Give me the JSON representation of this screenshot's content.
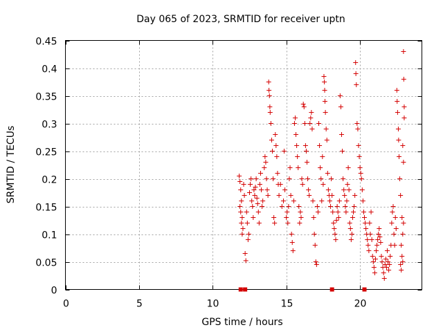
{
  "chart_data": {
    "type": "scatter",
    "title": "Day 065 of 2023, SRMTID for receiver uptn",
    "xlabel": "GPS time / hours",
    "ylabel": "SRMTID / TECUs",
    "xlim": [
      0,
      24.2
    ],
    "ylim": [
      0,
      0.45
    ],
    "xticks": [
      0,
      5,
      10,
      15,
      20
    ],
    "yticks": [
      0,
      0.05,
      0.1,
      0.15,
      0.2,
      0.25,
      0.3,
      0.35,
      0.4,
      0.45
    ],
    "xtick_labels": [
      "0",
      "5",
      "10",
      "15",
      "20"
    ],
    "ytick_labels": [
      "0",
      "0.05",
      "0.1",
      "0.15",
      "0.2",
      "0.25",
      "0.3",
      "0.35",
      "0.4",
      "0.45"
    ],
    "grid": true,
    "marker": "+",
    "color": "#d40000",
    "zero_markers_x": [
      11.9,
      12.2,
      18.1,
      20.3
    ],
    "series": [
      {
        "name": "SRMTID",
        "points": [
          [
            11.8,
            0.205
          ],
          [
            11.85,
            0.195
          ],
          [
            11.9,
            0.18
          ],
          [
            11.95,
            0.16
          ],
          [
            11.9,
            0.14
          ],
          [
            11.95,
            0.12
          ],
          [
            12.0,
            0.1
          ],
          [
            12.05,
            0.11
          ],
          [
            12.0,
            0.13
          ],
          [
            11.85,
            0.15
          ],
          [
            12.1,
            0.19
          ],
          [
            12.15,
            0.17
          ],
          [
            12.2,
            0.065
          ],
          [
            12.25,
            0.052
          ],
          [
            12.3,
            0.14
          ],
          [
            12.35,
            0.12
          ],
          [
            12.4,
            0.09
          ],
          [
            12.45,
            0.1
          ],
          [
            12.5,
            0.175
          ],
          [
            12.55,
            0.19
          ],
          [
            12.6,
            0.2
          ],
          [
            12.65,
            0.16
          ],
          [
            12.7,
            0.15
          ],
          [
            12.75,
            0.13
          ],
          [
            12.8,
            0.18
          ],
          [
            12.85,
            0.17
          ],
          [
            12.9,
            0.185
          ],
          [
            12.95,
            0.2
          ],
          [
            13.0,
            0.165
          ],
          [
            13.05,
            0.155
          ],
          [
            13.1,
            0.14
          ],
          [
            13.15,
            0.12
          ],
          [
            13.2,
            0.19
          ],
          [
            13.25,
            0.21
          ],
          [
            13.3,
            0.18
          ],
          [
            13.35,
            0.15
          ],
          [
            13.4,
            0.16
          ],
          [
            13.5,
            0.22
          ],
          [
            13.55,
            0.24
          ],
          [
            13.6,
            0.23
          ],
          [
            13.65,
            0.2
          ],
          [
            13.7,
            0.18
          ],
          [
            13.75,
            0.17
          ],
          [
            13.8,
            0.375
          ],
          [
            13.82,
            0.36
          ],
          [
            13.85,
            0.35
          ],
          [
            13.88,
            0.33
          ],
          [
            13.9,
            0.32
          ],
          [
            13.95,
            0.3
          ],
          [
            14.0,
            0.27
          ],
          [
            14.05,
            0.25
          ],
          [
            14.1,
            0.2
          ],
          [
            14.15,
            0.13
          ],
          [
            14.2,
            0.12
          ],
          [
            14.25,
            0.28
          ],
          [
            14.3,
            0.26
          ],
          [
            14.35,
            0.24
          ],
          [
            14.4,
            0.21
          ],
          [
            14.45,
            0.19
          ],
          [
            14.5,
            0.17
          ],
          [
            14.6,
            0.19
          ],
          [
            14.7,
            0.15
          ],
          [
            14.8,
            0.16
          ],
          [
            14.85,
            0.25
          ],
          [
            14.9,
            0.18
          ],
          [
            15.0,
            0.13
          ],
          [
            15.05,
            0.14
          ],
          [
            15.1,
            0.12
          ],
          [
            15.15,
            0.15
          ],
          [
            15.2,
            0.2
          ],
          [
            15.25,
            0.22
          ],
          [
            15.3,
            0.17
          ],
          [
            15.35,
            0.1
          ],
          [
            15.4,
            0.085
          ],
          [
            15.45,
            0.07
          ],
          [
            15.5,
            0.16
          ],
          [
            15.55,
            0.3
          ],
          [
            15.6,
            0.31
          ],
          [
            15.65,
            0.28
          ],
          [
            15.7,
            0.26
          ],
          [
            15.75,
            0.24
          ],
          [
            15.8,
            0.22
          ],
          [
            15.85,
            0.15
          ],
          [
            15.9,
            0.12
          ],
          [
            15.95,
            0.14
          ],
          [
            16.0,
            0.13
          ],
          [
            16.05,
            0.2
          ],
          [
            16.1,
            0.19
          ],
          [
            16.15,
            0.335
          ],
          [
            16.2,
            0.33
          ],
          [
            16.25,
            0.3
          ],
          [
            16.3,
            0.26
          ],
          [
            16.35,
            0.25
          ],
          [
            16.4,
            0.23
          ],
          [
            16.45,
            0.2
          ],
          [
            16.5,
            0.18
          ],
          [
            16.55,
            0.17
          ],
          [
            16.6,
            0.3
          ],
          [
            16.65,
            0.31
          ],
          [
            16.7,
            0.32
          ],
          [
            16.75,
            0.29
          ],
          [
            16.8,
            0.16
          ],
          [
            16.85,
            0.13
          ],
          [
            16.9,
            0.1
          ],
          [
            16.95,
            0.08
          ],
          [
            17.0,
            0.05
          ],
          [
            17.05,
            0.045
          ],
          [
            17.1,
            0.15
          ],
          [
            17.15,
            0.14
          ],
          [
            17.2,
            0.3
          ],
          [
            17.25,
            0.26
          ],
          [
            17.3,
            0.22
          ],
          [
            17.35,
            0.2
          ],
          [
            17.4,
            0.16
          ],
          [
            17.45,
            0.24
          ],
          [
            17.5,
            0.19
          ],
          [
            17.55,
            0.385
          ],
          [
            17.58,
            0.375
          ],
          [
            17.6,
            0.36
          ],
          [
            17.62,
            0.34
          ],
          [
            17.65,
            0.32
          ],
          [
            17.7,
            0.29
          ],
          [
            17.75,
            0.27
          ],
          [
            17.8,
            0.21
          ],
          [
            17.85,
            0.18
          ],
          [
            17.9,
            0.17
          ],
          [
            17.95,
            0.16
          ],
          [
            18.0,
            0.15
          ],
          [
            18.05,
            0.2
          ],
          [
            18.1,
            0.17
          ],
          [
            18.15,
            0.14
          ],
          [
            18.2,
            0.12
          ],
          [
            18.25,
            0.11
          ],
          [
            18.3,
            0.1
          ],
          [
            18.35,
            0.09
          ],
          [
            18.4,
            0.125
          ],
          [
            18.45,
            0.15
          ],
          [
            18.5,
            0.14
          ],
          [
            18.55,
            0.13
          ],
          [
            18.6,
            0.16
          ],
          [
            18.65,
            0.35
          ],
          [
            18.7,
            0.33
          ],
          [
            18.75,
            0.28
          ],
          [
            18.8,
            0.25
          ],
          [
            18.85,
            0.2
          ],
          [
            18.9,
            0.18
          ],
          [
            18.95,
            0.17
          ],
          [
            19.0,
            0.15
          ],
          [
            19.05,
            0.14
          ],
          [
            19.1,
            0.16
          ],
          [
            19.15,
            0.19
          ],
          [
            19.2,
            0.22
          ],
          [
            19.25,
            0.18
          ],
          [
            19.3,
            0.12
          ],
          [
            19.35,
            0.11
          ],
          [
            19.4,
            0.09
          ],
          [
            19.45,
            0.1
          ],
          [
            19.5,
            0.13
          ],
          [
            19.55,
            0.14
          ],
          [
            19.6,
            0.15
          ],
          [
            19.65,
            0.17
          ],
          [
            19.7,
            0.41
          ],
          [
            19.72,
            0.39
          ],
          [
            19.75,
            0.37
          ],
          [
            19.8,
            0.3
          ],
          [
            19.85,
            0.29
          ],
          [
            19.9,
            0.26
          ],
          [
            19.95,
            0.24
          ],
          [
            20.0,
            0.22
          ],
          [
            20.05,
            0.21
          ],
          [
            20.1,
            0.2
          ],
          [
            20.15,
            0.18
          ],
          [
            20.2,
            0.16
          ],
          [
            20.25,
            0.14
          ],
          [
            20.3,
            0.13
          ],
          [
            20.35,
            0.12
          ],
          [
            20.4,
            0.11
          ],
          [
            20.45,
            0.1
          ],
          [
            20.5,
            0.09
          ],
          [
            20.55,
            0.08
          ],
          [
            20.6,
            0.07
          ],
          [
            20.65,
            0.12
          ],
          [
            20.7,
            0.1
          ],
          [
            20.75,
            0.14
          ],
          [
            20.8,
            0.09
          ],
          [
            20.85,
            0.06
          ],
          [
            20.9,
            0.05
          ],
          [
            20.95,
            0.04
          ],
          [
            21.0,
            0.03
          ],
          [
            21.05,
            0.055
          ],
          [
            21.1,
            0.07
          ],
          [
            21.15,
            0.08
          ],
          [
            21.2,
            0.09
          ],
          [
            21.25,
            0.1
          ],
          [
            21.3,
            0.11
          ],
          [
            21.35,
            0.095
          ],
          [
            21.4,
            0.085
          ],
          [
            21.45,
            0.06
          ],
          [
            21.5,
            0.05
          ],
          [
            21.55,
            0.04
          ],
          [
            21.6,
            0.03
          ],
          [
            21.65,
            0.02
          ],
          [
            21.7,
            0.045
          ],
          [
            21.75,
            0.055
          ],
          [
            21.8,
            0.04
          ],
          [
            21.85,
            0.07
          ],
          [
            21.9,
            0.05
          ],
          [
            21.95,
            0.035
          ],
          [
            22.0,
            0.045
          ],
          [
            22.05,
            0.06
          ],
          [
            22.1,
            0.08
          ],
          [
            22.15,
            0.12
          ],
          [
            22.2,
            0.14
          ],
          [
            22.25,
            0.15
          ],
          [
            22.3,
            0.1
          ],
          [
            22.35,
            0.08
          ],
          [
            22.4,
            0.13
          ],
          [
            22.45,
            0.11
          ],
          [
            22.5,
            0.36
          ],
          [
            22.52,
            0.34
          ],
          [
            22.55,
            0.32
          ],
          [
            22.6,
            0.29
          ],
          [
            22.62,
            0.27
          ],
          [
            22.65,
            0.24
          ],
          [
            22.7,
            0.2
          ],
          [
            22.75,
            0.17
          ],
          [
            22.8,
            0.08
          ],
          [
            22.85,
            0.06
          ],
          [
            22.9,
            0.05
          ],
          [
            22.95,
            0.43
          ],
          [
            22.97,
            0.38
          ],
          [
            23.0,
            0.33
          ],
          [
            23.0,
            0.31
          ],
          [
            22.9,
            0.26
          ],
          [
            22.95,
            0.23
          ],
          [
            22.85,
            0.13
          ],
          [
            22.9,
            0.1
          ],
          [
            22.95,
            0.12
          ],
          [
            22.8,
            0.035
          ],
          [
            22.75,
            0.045
          ]
        ]
      }
    ]
  }
}
